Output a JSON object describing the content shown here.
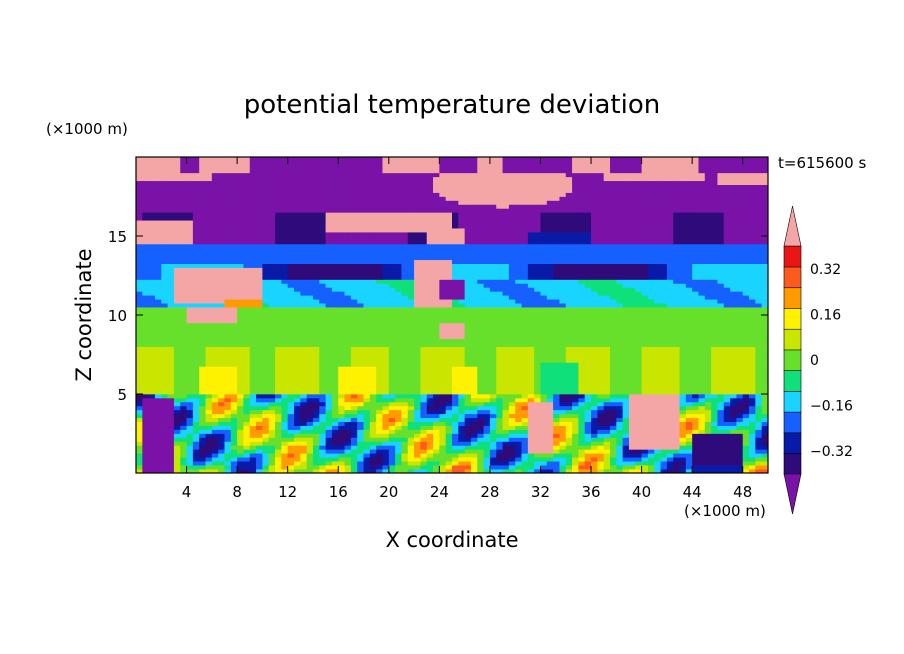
{
  "chart_data": {
    "type": "heatmap",
    "title": "potential temperature deviation",
    "xlabel": "X coordinate",
    "ylabel": "Z coordinate",
    "x_unit_label": "(×1000 m)",
    "y_unit_label": "(×1000 m)",
    "time_label": "t=615600 s",
    "xlim": [
      0,
      50
    ],
    "ylim": [
      0,
      20
    ],
    "x_ticks": [
      4,
      8,
      12,
      16,
      20,
      24,
      28,
      32,
      36,
      40,
      44,
      48
    ],
    "y_ticks": [
      5,
      10,
      15
    ],
    "colorbar": {
      "levels": [
        -0.4,
        -0.32,
        -0.24,
        -0.16,
        -0.08,
        0,
        0.08,
        0.16,
        0.24,
        0.32,
        0.4
      ],
      "labels": [
        "0.32",
        "0.16",
        "0",
        "−0.16",
        "−0.32"
      ],
      "label_values": [
        0.32,
        0.16,
        0,
        -0.16,
        -0.32
      ],
      "colors": [
        "#2e0a7a",
        "#0a1aa8",
        "#1560ff",
        "#18d4ff",
        "#10e07a",
        "#66e02a",
        "#c8e600",
        "#fff200",
        "#ff9a00",
        "#ff5a1e",
        "#ea1616"
      ],
      "under_color": "#7a12a8",
      "over_color": "#f4a6a6",
      "extend": "both"
    },
    "bands": [
      {
        "z": [
          19.0,
          20.0
        ],
        "field": "mixed_top"
      },
      {
        "z": [
          16.5,
          19.0
        ],
        "field": "upper_cold"
      },
      {
        "z": [
          14.5,
          16.5
        ],
        "field": "upper_transition"
      },
      {
        "z": [
          10.5,
          14.5
        ],
        "field": "mid_cold"
      },
      {
        "z": [
          5.0,
          10.5
        ],
        "field": "mid_warm"
      },
      {
        "z": [
          0.0,
          5.0
        ],
        "field": "boundary_layer"
      }
    ]
  }
}
